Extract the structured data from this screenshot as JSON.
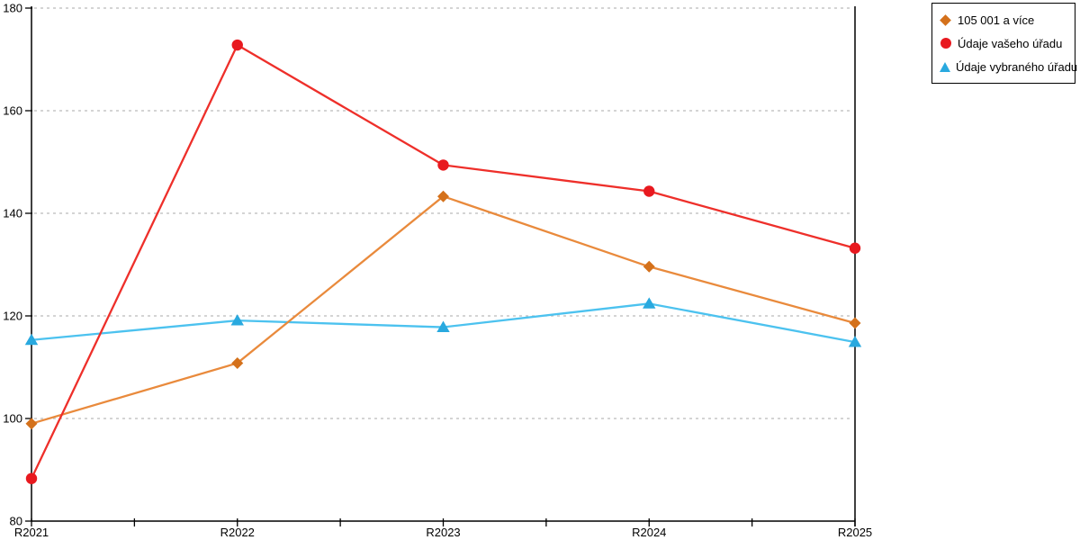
{
  "page": {
    "background": "#ffffff",
    "axis_color": "#000000",
    "grid_color": "#bbbbbb",
    "tick_label_color": "#000000"
  },
  "chart_data": {
    "type": "line",
    "title": "",
    "xlabel": "",
    "ylabel": "",
    "x": [
      "R2021",
      "R2022",
      "R2023",
      "R2024",
      "R2025"
    ],
    "series": [
      {
        "name": "105 001 a více",
        "marker": "diamond",
        "line_color": "#e98a3c",
        "marker_color": "#d4711b",
        "values": [
          99.0,
          110.8,
          143.3,
          129.6,
          118.6
        ]
      },
      {
        "name": "Údaje vašeho úřadu",
        "marker": "circle",
        "line_color": "#ee2f2a",
        "marker_color": "#e8191f",
        "values": [
          88.3,
          172.8,
          149.4,
          144.3,
          133.2
        ]
      },
      {
        "name": "Údaje vybraného úřadu",
        "marker": "triangle",
        "line_color": "#4cc2ef",
        "marker_color": "#29a9df",
        "values": [
          115.3,
          119.1,
          117.8,
          122.4,
          114.9
        ]
      }
    ],
    "ylim": [
      80,
      180
    ],
    "yticks": [
      80,
      100,
      120,
      140,
      160,
      180
    ],
    "grid": "horizontal-dashed",
    "legend_position": "top-right",
    "draw_order": [
      2,
      0,
      1
    ]
  }
}
